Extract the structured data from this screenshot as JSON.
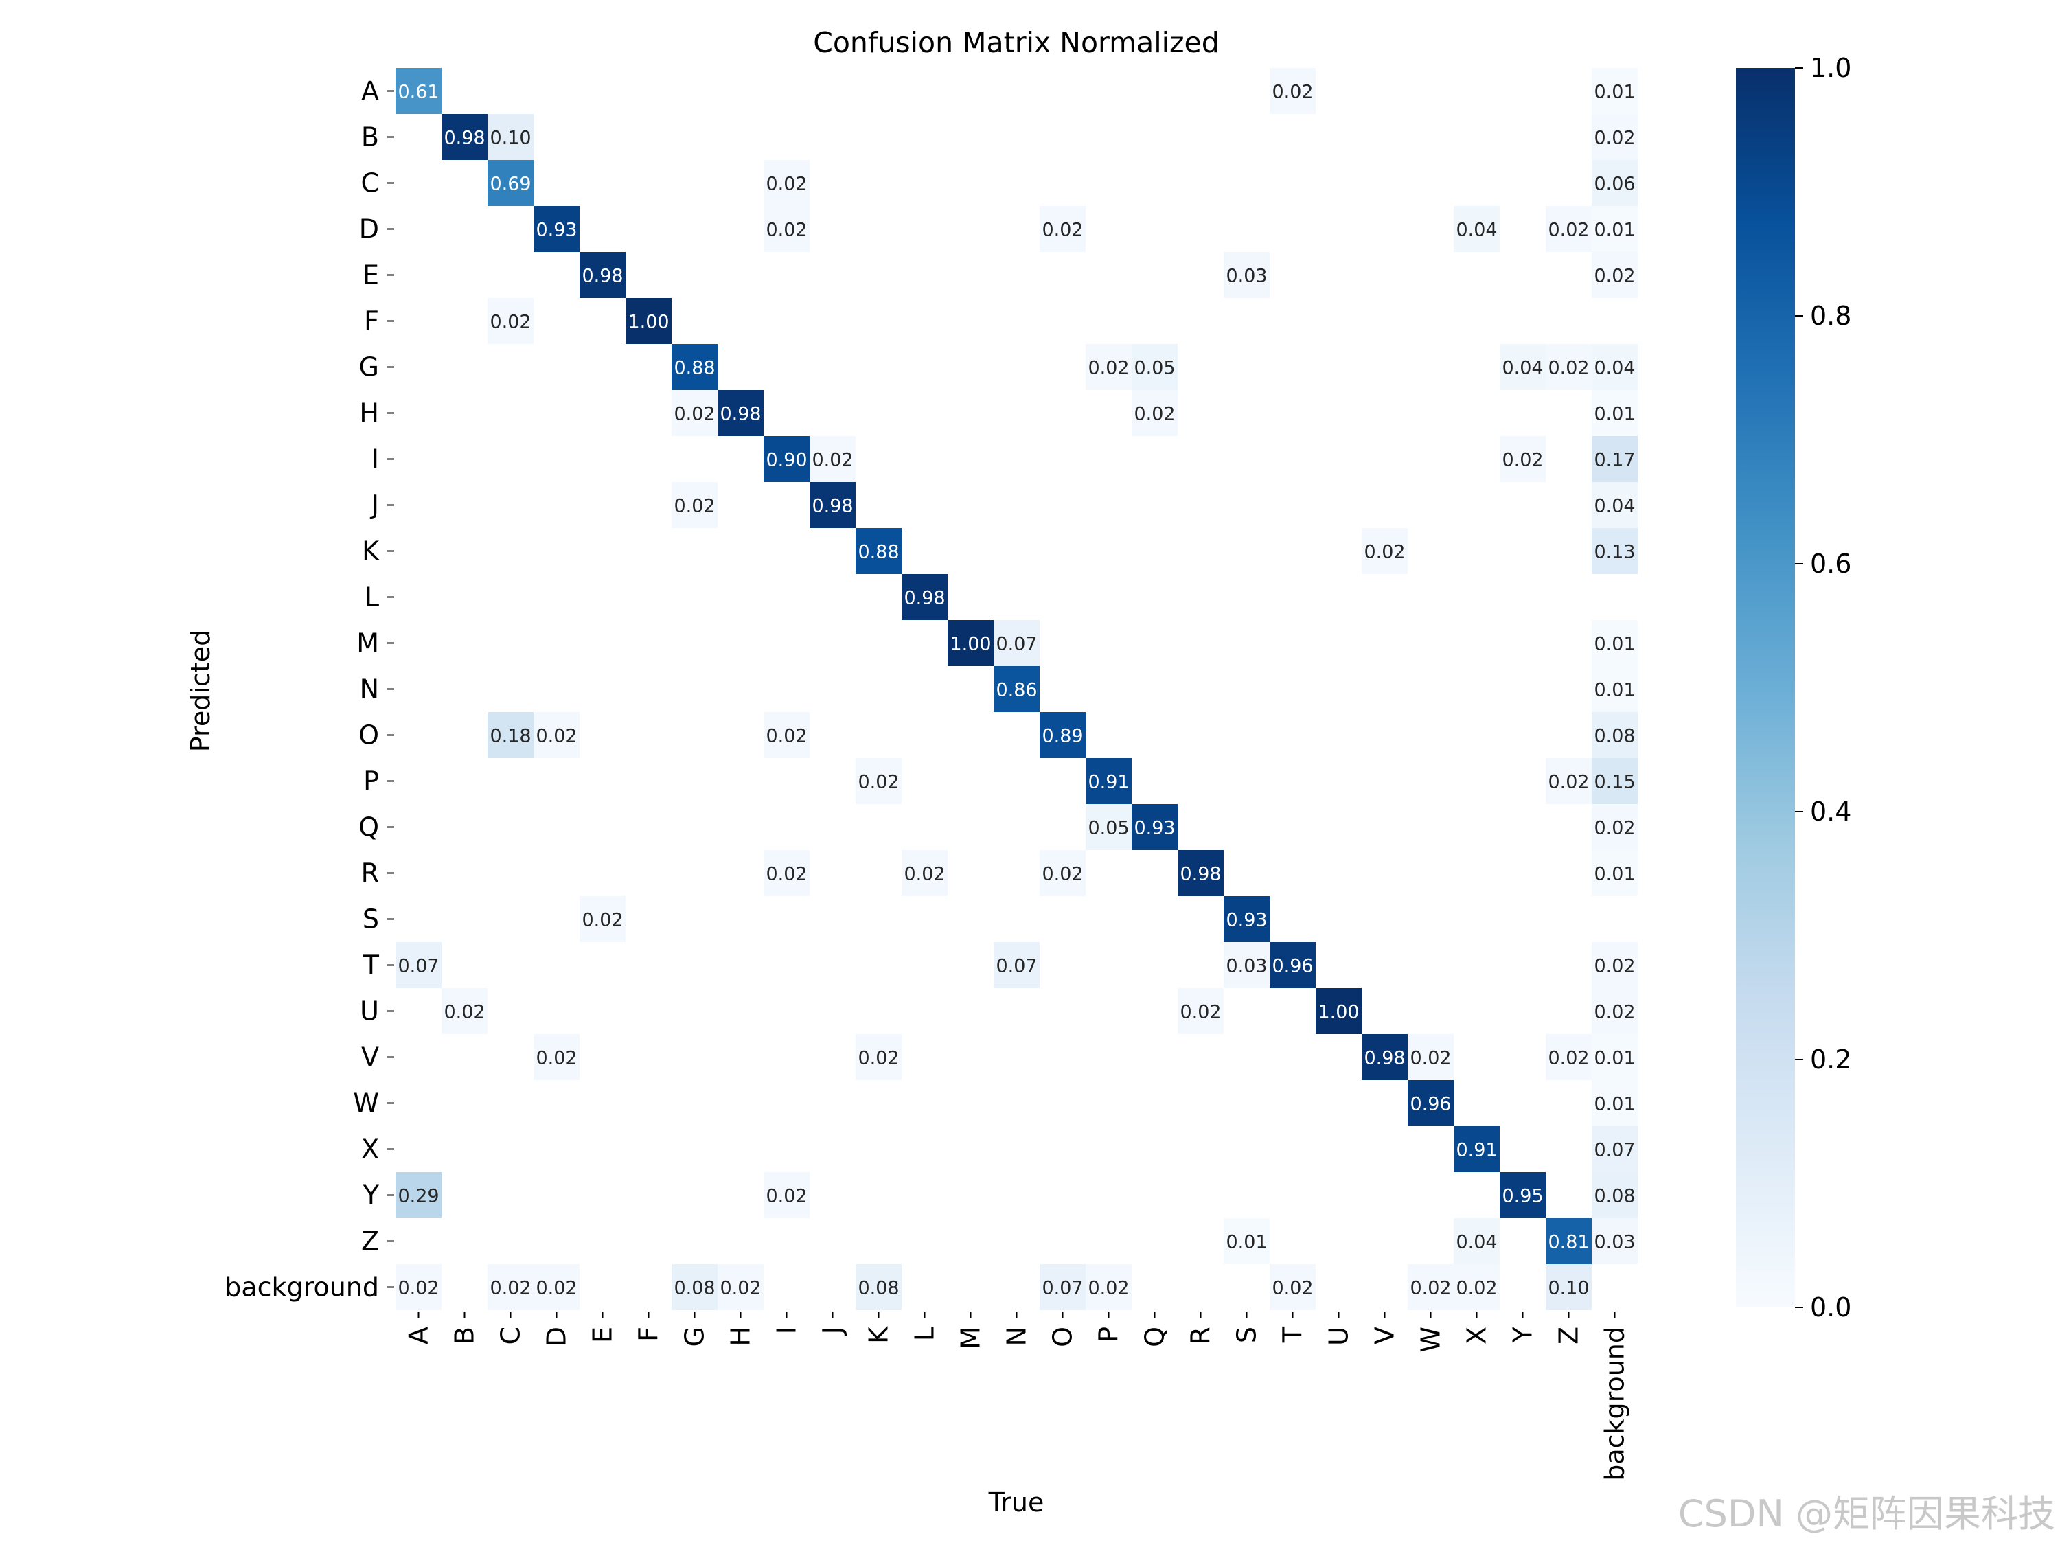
{
  "chart_data": {
    "type": "heatmap",
    "title": "Confusion Matrix Normalized",
    "xlabel": "True",
    "ylabel": "Predicted",
    "x_categories": [
      "A",
      "B",
      "C",
      "D",
      "E",
      "F",
      "G",
      "H",
      "I",
      "J",
      "K",
      "L",
      "M",
      "N",
      "O",
      "P",
      "Q",
      "R",
      "S",
      "T",
      "U",
      "V",
      "W",
      "X",
      "Y",
      "Z",
      "background"
    ],
    "y_categories": [
      "A",
      "B",
      "C",
      "D",
      "E",
      "F",
      "G",
      "H",
      "I",
      "J",
      "K",
      "L",
      "M",
      "N",
      "O",
      "P",
      "Q",
      "R",
      "S",
      "T",
      "U",
      "V",
      "W",
      "X",
      "Y",
      "Z",
      "background"
    ],
    "value_range": [
      0,
      1
    ],
    "colormap": "Blues",
    "colorbar_ticks": [
      "0.0",
      "0.2",
      "0.4",
      "0.6",
      "0.8",
      "1.0"
    ],
    "cells": [
      {
        "row": "A",
        "col": "A",
        "value": 0.61
      },
      {
        "row": "A",
        "col": "T",
        "value": 0.02
      },
      {
        "row": "A",
        "col": "background",
        "value": 0.01
      },
      {
        "row": "B",
        "col": "B",
        "value": 0.98
      },
      {
        "row": "B",
        "col": "C",
        "value": 0.1
      },
      {
        "row": "B",
        "col": "background",
        "value": 0.02
      },
      {
        "row": "C",
        "col": "C",
        "value": 0.69
      },
      {
        "row": "C",
        "col": "I",
        "value": 0.02
      },
      {
        "row": "C",
        "col": "background",
        "value": 0.06
      },
      {
        "row": "D",
        "col": "D",
        "value": 0.93
      },
      {
        "row": "D",
        "col": "I",
        "value": 0.02
      },
      {
        "row": "D",
        "col": "O",
        "value": 0.02
      },
      {
        "row": "D",
        "col": "X",
        "value": 0.04
      },
      {
        "row": "D",
        "col": "Z",
        "value": 0.02
      },
      {
        "row": "D",
        "col": "background",
        "value": 0.01
      },
      {
        "row": "E",
        "col": "E",
        "value": 0.98
      },
      {
        "row": "E",
        "col": "S",
        "value": 0.03
      },
      {
        "row": "E",
        "col": "background",
        "value": 0.02
      },
      {
        "row": "F",
        "col": "C",
        "value": 0.02
      },
      {
        "row": "F",
        "col": "F",
        "value": 1.0
      },
      {
        "row": "G",
        "col": "G",
        "value": 0.88
      },
      {
        "row": "G",
        "col": "P",
        "value": 0.02
      },
      {
        "row": "G",
        "col": "Q",
        "value": 0.05
      },
      {
        "row": "G",
        "col": "Y",
        "value": 0.04
      },
      {
        "row": "G",
        "col": "Z",
        "value": 0.02
      },
      {
        "row": "G",
        "col": "background",
        "value": 0.04
      },
      {
        "row": "H",
        "col": "G",
        "value": 0.02
      },
      {
        "row": "H",
        "col": "H",
        "value": 0.98
      },
      {
        "row": "H",
        "col": "Q",
        "value": 0.02
      },
      {
        "row": "H",
        "col": "background",
        "value": 0.01
      },
      {
        "row": "I",
        "col": "I",
        "value": 0.9
      },
      {
        "row": "I",
        "col": "J",
        "value": 0.02
      },
      {
        "row": "I",
        "col": "Y",
        "value": 0.02
      },
      {
        "row": "I",
        "col": "background",
        "value": 0.17
      },
      {
        "row": "J",
        "col": "G",
        "value": 0.02
      },
      {
        "row": "J",
        "col": "J",
        "value": 0.98
      },
      {
        "row": "J",
        "col": "background",
        "value": 0.04
      },
      {
        "row": "K",
        "col": "K",
        "value": 0.88
      },
      {
        "row": "K",
        "col": "V",
        "value": 0.02
      },
      {
        "row": "K",
        "col": "background",
        "value": 0.13
      },
      {
        "row": "L",
        "col": "L",
        "value": 0.98
      },
      {
        "row": "M",
        "col": "M",
        "value": 1.0
      },
      {
        "row": "M",
        "col": "N",
        "value": 0.07
      },
      {
        "row": "M",
        "col": "background",
        "value": 0.01
      },
      {
        "row": "N",
        "col": "N",
        "value": 0.86
      },
      {
        "row": "N",
        "col": "background",
        "value": 0.01
      },
      {
        "row": "O",
        "col": "C",
        "value": 0.18
      },
      {
        "row": "O",
        "col": "D",
        "value": 0.02
      },
      {
        "row": "O",
        "col": "I",
        "value": 0.02
      },
      {
        "row": "O",
        "col": "O",
        "value": 0.89
      },
      {
        "row": "O",
        "col": "background",
        "value": 0.08
      },
      {
        "row": "P",
        "col": "K",
        "value": 0.02
      },
      {
        "row": "P",
        "col": "P",
        "value": 0.91
      },
      {
        "row": "P",
        "col": "Z",
        "value": 0.02
      },
      {
        "row": "P",
        "col": "background",
        "value": 0.15
      },
      {
        "row": "Q",
        "col": "P",
        "value": 0.05
      },
      {
        "row": "Q",
        "col": "Q",
        "value": 0.93
      },
      {
        "row": "Q",
        "col": "background",
        "value": 0.02
      },
      {
        "row": "R",
        "col": "I",
        "value": 0.02
      },
      {
        "row": "R",
        "col": "L",
        "value": 0.02
      },
      {
        "row": "R",
        "col": "O",
        "value": 0.02
      },
      {
        "row": "R",
        "col": "R",
        "value": 0.98
      },
      {
        "row": "R",
        "col": "background",
        "value": 0.01
      },
      {
        "row": "S",
        "col": "E",
        "value": 0.02
      },
      {
        "row": "S",
        "col": "S",
        "value": 0.93
      },
      {
        "row": "T",
        "col": "A",
        "value": 0.07
      },
      {
        "row": "T",
        "col": "N",
        "value": 0.07
      },
      {
        "row": "T",
        "col": "S",
        "value": 0.03
      },
      {
        "row": "T",
        "col": "T",
        "value": 0.96
      },
      {
        "row": "T",
        "col": "background",
        "value": 0.02
      },
      {
        "row": "U",
        "col": "B",
        "value": 0.02
      },
      {
        "row": "U",
        "col": "R",
        "value": 0.02
      },
      {
        "row": "U",
        "col": "U",
        "value": 1.0
      },
      {
        "row": "U",
        "col": "background",
        "value": 0.02
      },
      {
        "row": "V",
        "col": "D",
        "value": 0.02
      },
      {
        "row": "V",
        "col": "K",
        "value": 0.02
      },
      {
        "row": "V",
        "col": "V",
        "value": 0.98
      },
      {
        "row": "V",
        "col": "W",
        "value": 0.02
      },
      {
        "row": "V",
        "col": "Z",
        "value": 0.02
      },
      {
        "row": "V",
        "col": "background",
        "value": 0.01
      },
      {
        "row": "W",
        "col": "W",
        "value": 0.96
      },
      {
        "row": "W",
        "col": "background",
        "value": 0.01
      },
      {
        "row": "X",
        "col": "X",
        "value": 0.91
      },
      {
        "row": "X",
        "col": "background",
        "value": 0.07
      },
      {
        "row": "Y",
        "col": "A",
        "value": 0.29
      },
      {
        "row": "Y",
        "col": "I",
        "value": 0.02
      },
      {
        "row": "Y",
        "col": "Y",
        "value": 0.95
      },
      {
        "row": "Y",
        "col": "background",
        "value": 0.08
      },
      {
        "row": "Z",
        "col": "S",
        "value": 0.01
      },
      {
        "row": "Z",
        "col": "X",
        "value": 0.04
      },
      {
        "row": "Z",
        "col": "Z",
        "value": 0.81
      },
      {
        "row": "Z",
        "col": "background",
        "value": 0.03
      },
      {
        "row": "background",
        "col": "A",
        "value": 0.02
      },
      {
        "row": "background",
        "col": "C",
        "value": 0.02
      },
      {
        "row": "background",
        "col": "D",
        "value": 0.02
      },
      {
        "row": "background",
        "col": "G",
        "value": 0.08
      },
      {
        "row": "background",
        "col": "H",
        "value": 0.02
      },
      {
        "row": "background",
        "col": "K",
        "value": 0.08
      },
      {
        "row": "background",
        "col": "O",
        "value": 0.07
      },
      {
        "row": "background",
        "col": "P",
        "value": 0.02
      },
      {
        "row": "background",
        "col": "T",
        "value": 0.02
      },
      {
        "row": "background",
        "col": "W",
        "value": 0.02
      },
      {
        "row": "background",
        "col": "X",
        "value": 0.02
      },
      {
        "row": "background",
        "col": "Z",
        "value": 0.1
      }
    ]
  },
  "watermark": "CSDN @矩阵因果科技"
}
